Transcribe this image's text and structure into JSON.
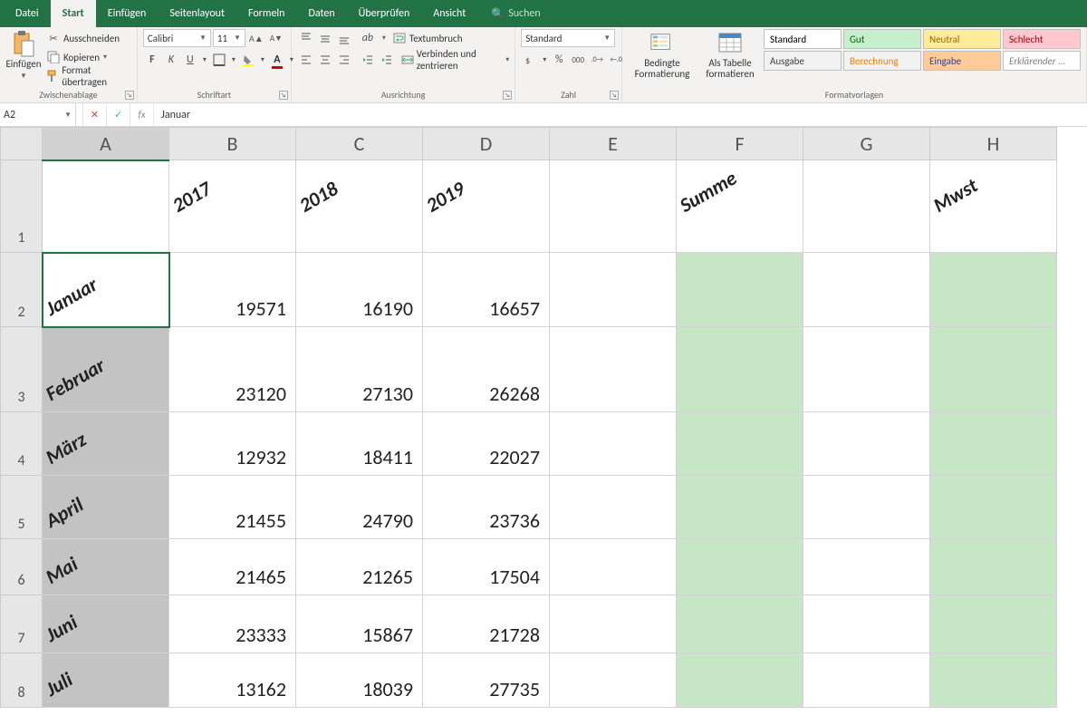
{
  "tabs": {
    "items": [
      "Datei",
      "Start",
      "Einfügen",
      "Seitenlayout",
      "Formeln",
      "Daten",
      "Überprüfen",
      "Ansicht"
    ],
    "active": "Start",
    "search_placeholder": "Suchen"
  },
  "ribbon": {
    "clipboard": {
      "paste": "Einfügen",
      "cut": "Ausschneiden",
      "copy": "Kopieren",
      "format_painter": "Format übertragen",
      "label": "Zwischenablage"
    },
    "font": {
      "name": "Calibri",
      "size": "11",
      "label": "Schriftart"
    },
    "alignment": {
      "wrap": "Textumbruch",
      "merge": "Verbinden und zentrieren",
      "label": "Ausrichtung"
    },
    "number": {
      "format": "Standard",
      "label": "Zahl"
    },
    "styles": {
      "cond": "Bedingte Formatierung",
      "as_table": "Als Tabelle formatieren",
      "cells": [
        {
          "label": "Standard",
          "bg": "#ffffff",
          "fg": "#000000"
        },
        {
          "label": "Gut",
          "bg": "#c6efce",
          "fg": "#006100"
        },
        {
          "label": "Neutral",
          "bg": "#ffeb9c",
          "fg": "#9c6500"
        },
        {
          "label": "Schlecht",
          "bg": "#ffc7ce",
          "fg": "#9c0006"
        },
        {
          "label": "Ausgabe",
          "bg": "#f2f2f2",
          "fg": "#3f3f3f"
        },
        {
          "label": "Berechnung",
          "bg": "#f2f2f2",
          "fg": "#fa7d00"
        },
        {
          "label": "Eingabe",
          "bg": "#ffcc99",
          "fg": "#3f3f76"
        },
        {
          "label": "Erklärender ...",
          "bg": "#ffffff",
          "fg": "#7f7f7f"
        }
      ],
      "label": "Formatvorlagen"
    }
  },
  "formula_bar": {
    "name_box": "A2",
    "formula": "Januar"
  },
  "sheet": {
    "columns": [
      {
        "letter": "A",
        "width": 140,
        "selected": true
      },
      {
        "letter": "B",
        "width": 140
      },
      {
        "letter": "C",
        "width": 140
      },
      {
        "letter": "D",
        "width": 140
      },
      {
        "letter": "E",
        "width": 140
      },
      {
        "letter": "F",
        "width": 140
      },
      {
        "letter": "G",
        "width": 140
      },
      {
        "letter": "H",
        "width": 140
      }
    ],
    "green_columns": [
      "F",
      "H"
    ],
    "selected_column": "A",
    "active_cell": "A2",
    "rows": [
      {
        "n": 1,
        "height": 102,
        "header": true,
        "cells": [
          "",
          "2017",
          "2018",
          "2019",
          "",
          "Summe",
          "",
          "Mwst"
        ]
      },
      {
        "n": 2,
        "height": 82,
        "cells": [
          "Januar",
          "19571",
          "16190",
          "16657",
          "",
          "",
          "",
          ""
        ]
      },
      {
        "n": 3,
        "height": 94,
        "cells": [
          "Februar",
          "23120",
          "27130",
          "26268",
          "",
          "",
          "",
          ""
        ]
      },
      {
        "n": 4,
        "height": 70,
        "cells": [
          "März",
          "12932",
          "18411",
          "22027",
          "",
          "",
          "",
          ""
        ]
      },
      {
        "n": 5,
        "height": 70,
        "cells": [
          "April",
          "21455",
          "24790",
          "23736",
          "",
          "",
          "",
          ""
        ]
      },
      {
        "n": 6,
        "height": 62,
        "cells": [
          "Mai",
          "21465",
          "21265",
          "17504",
          "",
          "",
          "",
          ""
        ]
      },
      {
        "n": 7,
        "height": 64,
        "cells": [
          "Juni",
          "23333",
          "15867",
          "21728",
          "",
          "",
          "",
          ""
        ]
      },
      {
        "n": 8,
        "height": 60,
        "cells": [
          "Juli",
          "13162",
          "18039",
          "27735",
          "",
          "",
          "",
          ""
        ]
      }
    ],
    "rotated_columns": [
      "A"
    ],
    "rotated_header_row": 1
  },
  "colors": {
    "brand": "#217346",
    "ribbon_bg": "#f3f2f1",
    "green_fill": "#c6e6c6",
    "selection_gray": "#c3c3c3"
  }
}
